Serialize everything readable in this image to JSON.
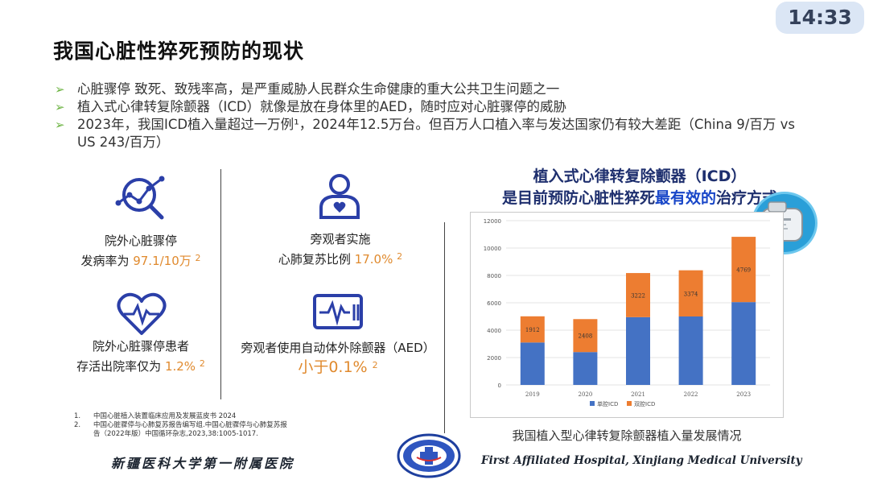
{
  "clock": "14:33",
  "title": "我国心脏性猝死预防的现状",
  "bullets": [
    "心脏骤停 致死、致残率高，是严重威胁人民群众生命健康的重大公共卫生问题之一",
    "植入式心律转复除颤器（ICD）就像是放在身体里的AED，随时应对心脏骤停的威胁",
    "2023年，我国ICD植入量超过一万例¹，2024年12.5万台。但百万人口植入率与发达国家仍有较大差距（China 9/百万 vs US 243/百万）"
  ],
  "stats": {
    "s1": {
      "l1": "院外心脏骤停",
      "l2a": "发病率为 ",
      "val": "97.1/10万",
      "ref": "2"
    },
    "s2": {
      "l1": "旁观者实施",
      "l2a": "心肺复苏比例 ",
      "val": "17.0%",
      "ref": "2"
    },
    "s3": {
      "l1": "院外心脏骤停患者",
      "l2a": "存活出院率仅为 ",
      "val": "1.2%",
      "ref": "2"
    },
    "s4": {
      "l1": "旁观者使用自动体外除颤器（AED）",
      "val": "小于0.1%",
      "ref": "2"
    }
  },
  "icons": {
    "s1": "magnifier-line-chart-icon",
    "s2": "person-heart-icon",
    "s3": "heart-pulse-icon",
    "s4": "defibrillator-monitor-icon"
  },
  "references": [
    {
      "num": "1.",
      "text": "中国心脏植入装置临床应用及发展蓝皮书 2024"
    },
    {
      "num": "2.",
      "text": "中国心脏骤停与心肺复苏报告编写组.中国心脏骤停与心肺复苏报告（2022年版）中国循环杂志,2023,38:1005-1017."
    }
  ],
  "chart_heading": {
    "line1": "植入式心律转复除颤器（ICD）",
    "line2a": "是目前预防心脏性猝死",
    "line2b": "最有效的",
    "line2c": "治疗方式"
  },
  "chart_caption": "我国植入型心律转复除颤器植入量发展情况",
  "chart_data": {
    "type": "bar",
    "stacked": true,
    "categories": [
      "2019",
      "2020",
      "2021",
      "2022",
      "2023"
    ],
    "series": [
      {
        "name": "单腔ICD",
        "color": "#4472c4",
        "values": [
          3100,
          2400,
          4950,
          5000,
          6050
        ]
      },
      {
        "name": "双腔ICD",
        "color": "#ed7d31",
        "values": [
          1912,
          2408,
          3222,
          3374,
          4769
        ]
      }
    ],
    "data_labels": [
      "1912",
      "2408",
      "3222",
      "3374",
      "4769"
    ],
    "y_ticks": [
      "0",
      "2000",
      "4000",
      "6000",
      "8000",
      "10000",
      "12000"
    ],
    "ylim": [
      0,
      12000
    ],
    "grid": true,
    "legend": "bottom"
  },
  "footer": {
    "cn": "新疆医科大学第一附属医院",
    "en": "First Affiliated Hospital, Xinjiang Medical University"
  },
  "colors": {
    "accent_orange": "#e08a2e",
    "icon_blue": "#2b3fa8",
    "bullet_green": "#6fb546"
  }
}
